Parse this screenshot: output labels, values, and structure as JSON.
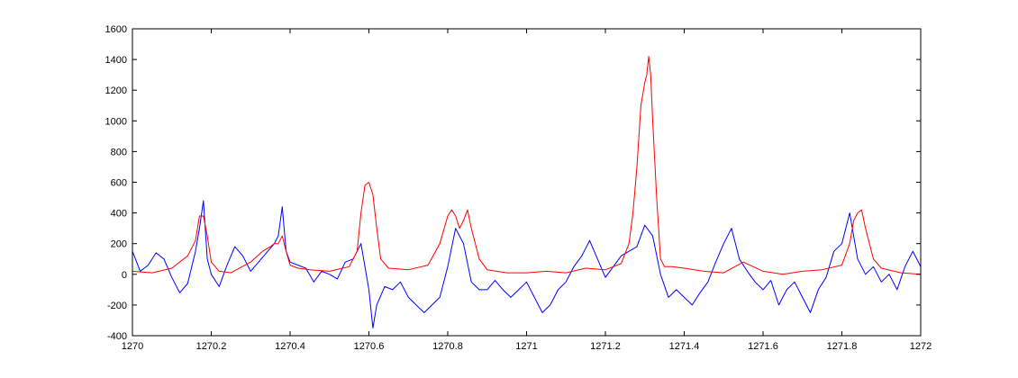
{
  "chart_data": {
    "type": "line",
    "title": "",
    "xlabel": "",
    "ylabel": "",
    "xlim": [
      1270,
      1272
    ],
    "ylim": [
      -400,
      1600
    ],
    "xticks": [
      1270,
      1270.2,
      1270.4,
      1270.6,
      1270.8,
      1271,
      1271.2,
      1271.4,
      1271.6,
      1271.8,
      1272
    ],
    "xtick_labels": [
      "1270",
      "1270.2",
      "1270.4",
      "1270.6",
      "1270.8",
      "1271",
      "1271.2",
      "1271.4",
      "1271.6",
      "1271.8",
      "1272"
    ],
    "yticks": [
      -400,
      -200,
      0,
      200,
      400,
      600,
      800,
      1000,
      1200,
      1400,
      1600
    ],
    "ytick_labels": [
      "-400",
      "-200",
      "0",
      "200",
      "400",
      "600",
      "800",
      "1000",
      "1200",
      "1400",
      "1600"
    ],
    "grid": false,
    "legend": "none",
    "series": [
      {
        "color": "#0000ff",
        "x": [
          1270.0,
          1270.02,
          1270.04,
          1270.06,
          1270.08,
          1270.1,
          1270.12,
          1270.14,
          1270.16,
          1270.17,
          1270.18,
          1270.19,
          1270.2,
          1270.22,
          1270.24,
          1270.26,
          1270.28,
          1270.3,
          1270.32,
          1270.34,
          1270.36,
          1270.37,
          1270.38,
          1270.39,
          1270.4,
          1270.42,
          1270.44,
          1270.46,
          1270.48,
          1270.5,
          1270.52,
          1270.54,
          1270.56,
          1270.58,
          1270.6,
          1270.61,
          1270.62,
          1270.64,
          1270.66,
          1270.68,
          1270.7,
          1270.72,
          1270.74,
          1270.76,
          1270.78,
          1270.8,
          1270.82,
          1270.84,
          1270.86,
          1270.88,
          1270.9,
          1270.92,
          1270.94,
          1270.96,
          1270.98,
          1271.0,
          1271.02,
          1271.04,
          1271.06,
          1271.08,
          1271.1,
          1271.12,
          1271.14,
          1271.16,
          1271.18,
          1271.2,
          1271.22,
          1271.24,
          1271.26,
          1271.28,
          1271.3,
          1271.32,
          1271.34,
          1271.36,
          1271.38,
          1271.4,
          1271.42,
          1271.44,
          1271.46,
          1271.48,
          1271.5,
          1271.52,
          1271.54,
          1271.56,
          1271.58,
          1271.6,
          1271.62,
          1271.64,
          1271.66,
          1271.68,
          1271.7,
          1271.72,
          1271.74,
          1271.76,
          1271.78,
          1271.8,
          1271.82,
          1271.84,
          1271.86,
          1271.88,
          1271.9,
          1271.92,
          1271.94,
          1271.96,
          1271.98,
          1272.0
        ],
        "y": [
          150,
          20,
          60,
          140,
          100,
          -20,
          -120,
          -60,
          150,
          300,
          480,
          100,
          0,
          -80,
          60,
          180,
          120,
          20,
          80,
          140,
          200,
          250,
          440,
          150,
          80,
          60,
          40,
          -50,
          20,
          0,
          -30,
          80,
          100,
          200,
          -100,
          -350,
          -200,
          -80,
          -100,
          -50,
          -150,
          -200,
          -250,
          -200,
          -150,
          50,
          300,
          200,
          -50,
          -100,
          -100,
          -40,
          -100,
          -150,
          -100,
          -50,
          -150,
          -250,
          -200,
          -100,
          -50,
          50,
          120,
          220,
          100,
          -20,
          50,
          120,
          150,
          180,
          320,
          250,
          0,
          -150,
          -100,
          -150,
          -200,
          -120,
          -50,
          80,
          200,
          300,
          100,
          20,
          -50,
          -100,
          -40,
          -200,
          -100,
          -50,
          -150,
          -250,
          -100,
          -20,
          150,
          200,
          400,
          100,
          0,
          50,
          -50,
          0,
          -100,
          50,
          150,
          50
        ]
      },
      {
        "color": "#ff0000",
        "x": [
          1270.0,
          1270.05,
          1270.1,
          1270.14,
          1270.16,
          1270.17,
          1270.18,
          1270.19,
          1270.2,
          1270.22,
          1270.25,
          1270.3,
          1270.33,
          1270.35,
          1270.36,
          1270.37,
          1270.38,
          1270.39,
          1270.4,
          1270.42,
          1270.45,
          1270.5,
          1270.55,
          1270.57,
          1270.58,
          1270.59,
          1270.6,
          1270.61,
          1270.62,
          1270.63,
          1270.65,
          1270.7,
          1270.75,
          1270.78,
          1270.8,
          1270.81,
          1270.82,
          1270.83,
          1270.84,
          1270.85,
          1270.86,
          1270.88,
          1270.9,
          1270.95,
          1271.0,
          1271.05,
          1271.1,
          1271.15,
          1271.2,
          1271.24,
          1271.26,
          1271.27,
          1271.28,
          1271.29,
          1271.3,
          1271.305,
          1271.31,
          1271.315,
          1271.32,
          1271.33,
          1271.34,
          1271.35,
          1271.37,
          1271.4,
          1271.45,
          1271.5,
          1271.55,
          1271.6,
          1271.65,
          1271.7,
          1271.75,
          1271.8,
          1271.82,
          1271.83,
          1271.84,
          1271.85,
          1271.86,
          1271.87,
          1271.88,
          1271.9,
          1271.95,
          1272.0
        ],
        "y": [
          20,
          10,
          40,
          120,
          220,
          380,
          380,
          250,
          80,
          20,
          10,
          80,
          150,
          180,
          200,
          200,
          250,
          150,
          60,
          40,
          30,
          20,
          50,
          150,
          400,
          580,
          600,
          520,
          300,
          100,
          40,
          30,
          60,
          200,
          380,
          420,
          380,
          300,
          350,
          420,
          300,
          100,
          30,
          10,
          10,
          20,
          10,
          40,
          30,
          70,
          200,
          400,
          700,
          1100,
          1250,
          1300,
          1420,
          1300,
          1000,
          500,
          100,
          50,
          50,
          40,
          20,
          10,
          80,
          20,
          0,
          20,
          30,
          60,
          200,
          350,
          400,
          420,
          300,
          200,
          100,
          40,
          10,
          0
        ]
      }
    ]
  }
}
